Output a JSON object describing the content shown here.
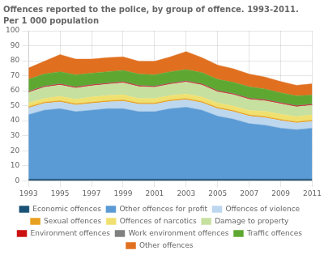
{
  "chart_data": {
    "type": "area",
    "title": "Offences reported to the police, by group of offence. 1993-2011.",
    "subtitle": "Per 1 000 population",
    "x": [
      1993,
      1994,
      1995,
      1996,
      1997,
      1998,
      1999,
      2000,
      2001,
      2002,
      2003,
      2004,
      2005,
      2006,
      2007,
      2008,
      2009,
      2010,
      2011
    ],
    "series": [
      {
        "name": "Economic offences",
        "color": "#1a5276",
        "values": [
          1.0,
          1.0,
          1.0,
          1.0,
          1.0,
          1.0,
          1.0,
          1.0,
          1.0,
          1.0,
          1.0,
          1.0,
          1.0,
          1.0,
          1.0,
          1.0,
          1.0,
          1.0,
          1.0
        ]
      },
      {
        "name": "Other offences for profit",
        "color": "#5b9bd5",
        "values": [
          43,
          46,
          47,
          45,
          46,
          47,
          47,
          45,
          45,
          47,
          48,
          46,
          42,
          40,
          37,
          36,
          34,
          33,
          34
        ]
      },
      {
        "name": "Offences of violence",
        "color": "#bdd7ee",
        "values": [
          4.5,
          4.5,
          4.5,
          4.5,
          4.5,
          4.5,
          5.0,
          5.0,
          5.0,
          5.0,
          5.0,
          5.0,
          5.0,
          5.0,
          5.0,
          5.0,
          5.0,
          4.5,
          4.5
        ]
      },
      {
        "name": "Sexual offences",
        "color": "#e8a020",
        "values": [
          0.8,
          0.8,
          0.8,
          0.8,
          0.8,
          0.8,
          0.8,
          0.8,
          0.8,
          0.8,
          0.8,
          0.8,
          0.8,
          0.8,
          0.8,
          0.8,
          0.8,
          0.8,
          0.8
        ]
      },
      {
        "name": "Offences of narcotics",
        "color": "#f0e070",
        "values": [
          2.5,
          2.5,
          3.0,
          3.0,
          3.5,
          3.5,
          3.5,
          3.0,
          3.0,
          3.0,
          3.0,
          3.0,
          3.0,
          3.0,
          3.0,
          3.5,
          3.5,
          3.5,
          3.5
        ]
      },
      {
        "name": "Damage to property",
        "color": "#c6e0a0",
        "values": [
          7.0,
          7.5,
          7.5,
          7.5,
          7.5,
          7.5,
          8.0,
          8.0,
          7.5,
          7.5,
          8.0,
          8.0,
          7.5,
          7.5,
          7.5,
          7.0,
          7.0,
          6.5,
          6.5
        ]
      },
      {
        "name": "Environment offences",
        "color": "#cc1111",
        "values": [
          0.5,
          0.5,
          0.5,
          0.5,
          0.5,
          0.5,
          0.5,
          0.5,
          0.5,
          0.5,
          0.5,
          0.5,
          0.5,
          0.5,
          0.5,
          0.5,
          0.5,
          0.5,
          0.5
        ]
      },
      {
        "name": "Work environment offences",
        "color": "#808080",
        "values": [
          0.3,
          0.3,
          0.3,
          0.3,
          0.3,
          0.3,
          0.3,
          0.3,
          0.3,
          0.3,
          0.3,
          0.3,
          0.3,
          0.3,
          0.3,
          0.3,
          0.3,
          0.3,
          0.3
        ]
      },
      {
        "name": "Traffic offences",
        "color": "#5ea832",
        "values": [
          8.0,
          8.0,
          8.0,
          8.0,
          7.5,
          7.5,
          7.5,
          7.5,
          7.5,
          7.5,
          7.5,
          7.5,
          7.5,
          7.5,
          7.5,
          7.0,
          6.5,
          6.5,
          6.0
        ]
      },
      {
        "name": "Other offences",
        "color": "#e07020",
        "values": [
          7.5,
          8.5,
          11.5,
          10.5,
          9.5,
          9.5,
          9.0,
          8.5,
          9.0,
          10.0,
          12.0,
          10.0,
          9.5,
          9.0,
          8.5,
          8.0,
          7.5,
          7.0,
          7.5
        ]
      }
    ],
    "xlim": [
      1993,
      2011
    ],
    "xticks": [
      1993,
      1995,
      1997,
      1999,
      2001,
      2003,
      2005,
      2007,
      2009,
      2011
    ],
    "ylim": [
      0,
      100
    ],
    "yticks": [
      0,
      10,
      20,
      30,
      40,
      50,
      60,
      70,
      80,
      90,
      100
    ],
    "stacked": true,
    "grid": true,
    "legend": "bottom"
  }
}
